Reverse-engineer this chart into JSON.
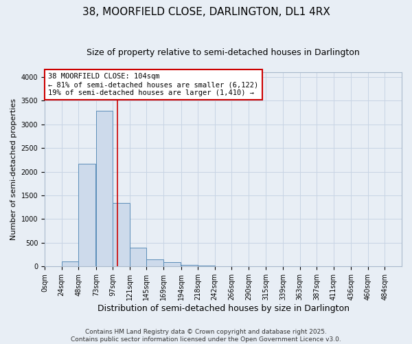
{
  "title": "38, MOORFIELD CLOSE, DARLINGTON, DL1 4RX",
  "subtitle": "Size of property relative to semi-detached houses in Darlington",
  "xlabel": "Distribution of semi-detached houses by size in Darlington",
  "ylabel": "Number of semi-detached properties",
  "bar_left_edges": [
    0,
    24,
    48,
    73,
    97,
    121,
    145,
    169,
    194,
    218,
    242,
    266,
    290,
    315,
    339,
    363,
    387,
    411,
    436,
    460
  ],
  "bar_heights": [
    0,
    110,
    2170,
    3280,
    1340,
    390,
    155,
    90,
    40,
    15,
    8,
    3,
    2,
    0,
    0,
    0,
    0,
    0,
    0,
    0
  ],
  "bar_color": "#cddaeb",
  "bar_edge_color": "#5b8db8",
  "bar_edge_width": 0.7,
  "vline_x": 104,
  "vline_color": "#cc0000",
  "ylim": [
    0,
    4100
  ],
  "yticks": [
    0,
    500,
    1000,
    1500,
    2000,
    2500,
    3000,
    3500,
    4000
  ],
  "xtick_labels": [
    "0sqm",
    "24sqm",
    "48sqm",
    "73sqm",
    "97sqm",
    "121sqm",
    "145sqm",
    "169sqm",
    "194sqm",
    "218sqm",
    "242sqm",
    "266sqm",
    "290sqm",
    "315sqm",
    "339sqm",
    "363sqm",
    "387sqm",
    "411sqm",
    "436sqm",
    "460sqm",
    "484sqm"
  ],
  "xtick_positions": [
    0,
    24,
    48,
    73,
    97,
    121,
    145,
    169,
    194,
    218,
    242,
    266,
    290,
    315,
    339,
    363,
    387,
    411,
    436,
    460,
    484
  ],
  "annotation_title": "38 MOORFIELD CLOSE: 104sqm",
  "annotation_line1": "← 81% of semi-detached houses are smaller (6,122)",
  "annotation_line2": "19% of semi-detached houses are larger (1,410) →",
  "annotation_box_facecolor": "#ffffff",
  "annotation_box_edgecolor": "#cc0000",
  "grid_color": "#c8d4e4",
  "bg_color": "#e8eef5",
  "plot_bg_color": "#e8eef5",
  "footer1": "Contains HM Land Registry data © Crown copyright and database right 2025.",
  "footer2": "Contains public sector information licensed under the Open Government Licence v3.0.",
  "title_fontsize": 11,
  "subtitle_fontsize": 9,
  "xlabel_fontsize": 9,
  "ylabel_fontsize": 8,
  "tick_fontsize": 7,
  "annotation_fontsize": 7.5,
  "footer_fontsize": 6.5
}
